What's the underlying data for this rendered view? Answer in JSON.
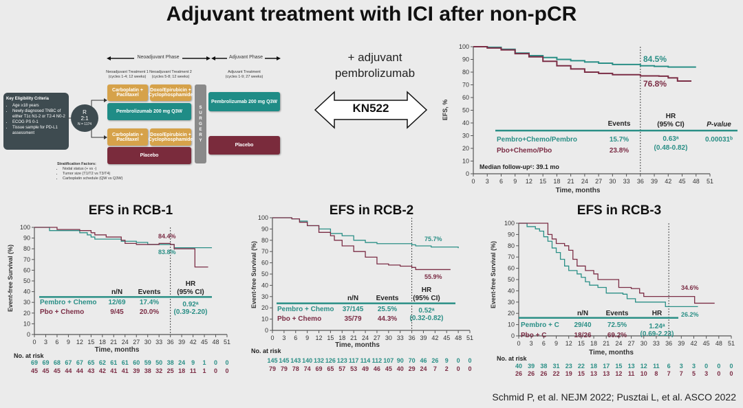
{
  "slide_title": "Adjuvant treatment with ICI after non-pCR",
  "design": {
    "neoadjuvant_phase": "Neoadjuvant Phase",
    "adjuvant_phase": "Adjuvant Phase",
    "neo1_title": "Neoadjuvant Treatment 1",
    "neo1_sub": "(cycles 1-4; 12 weeks)",
    "neo2_title": "Neoadjuvant Treatment 2",
    "neo2_sub": "(cycles 5-8; 12 weeks)",
    "adj_title": "Adjuvant Treatment",
    "adj_sub": "(cycles 1-9; 27 weeks)",
    "eligibility_title": "Key Eligibility Criteria",
    "eligibility": [
      "Age ≥18 years",
      "Newly diagnosed TNBC of either T1c N1-2 or T2-4 N0-2",
      "ECOG PS 0-1",
      "Tissue sample for PD-L1 assessment"
    ],
    "randomization": {
      "r": "R",
      "ratio": "2:1",
      "n": "N = 1174"
    },
    "carbo": "Carboplatin + Paclitaxel",
    "doxo": "Doxo/Epirubicin + Cyclophosphamide",
    "pembro_neo": "Pembrolizumab 200 mg Q3W",
    "placebo_neo": "Placebo",
    "surgery": [
      "S",
      "U",
      "R",
      "G",
      "E",
      "R",
      "Y"
    ],
    "pembro_adj": "Pembrolizumab 200 mg Q3W",
    "placebo_adj": "Placebo",
    "strat_title": "Stratification Factors:",
    "strat": [
      "Nodal status (+ vs -)",
      "Tumor size (T1/T2 vs T3/T4)",
      "Carboplatin schedule (QW vs Q3W)"
    ]
  },
  "kn522": {
    "line1": "+ adjuvant",
    "line2": "pembrolizumab",
    "label": "KN522"
  },
  "citation": "Schmid P, et al. NEJM 2022; Pusztai L, et al. ASCO 2022",
  "colors": {
    "teal": "#2a8f86",
    "maroon": "#7b2d45"
  },
  "chart_data": [
    {
      "type": "line",
      "title": "",
      "xlabel": "Time, months",
      "ylabel": "EFS, %",
      "xlim": [
        0,
        51
      ],
      "ylim": [
        0,
        100
      ],
      "xticks": [
        0,
        3,
        6,
        9,
        12,
        15,
        18,
        21,
        24,
        27,
        30,
        33,
        36,
        39,
        42,
        45,
        48,
        51
      ],
      "yticks": [
        0,
        10,
        20,
        30,
        40,
        50,
        60,
        70,
        80,
        90,
        100
      ],
      "landmark_x": 36,
      "series": [
        {
          "name": "Pembro+Chemo/Pembro",
          "color": "#2a8f86",
          "points": [
            [
              0,
              100
            ],
            [
              3,
              99.5
            ],
            [
              6,
              98
            ],
            [
              9,
              95
            ],
            [
              12,
              93
            ],
            [
              15,
              91.5
            ],
            [
              18,
              90
            ],
            [
              21,
              89
            ],
            [
              24,
              88
            ],
            [
              27,
              87
            ],
            [
              30,
              86
            ],
            [
              36,
              85
            ],
            [
              39,
              84.5
            ],
            [
              42,
              84
            ],
            [
              48,
              84
            ]
          ]
        },
        {
          "name": "Pbo+Chemo/Pbo",
          "color": "#7b2d45",
          "points": [
            [
              0,
              100
            ],
            [
              3,
              99
            ],
            [
              6,
              97.5
            ],
            [
              9,
              94.5
            ],
            [
              12,
              92
            ],
            [
              15,
              88.5
            ],
            [
              18,
              85
            ],
            [
              21,
              82.5
            ],
            [
              24,
              80
            ],
            [
              27,
              79
            ],
            [
              30,
              78
            ],
            [
              36,
              77
            ],
            [
              40,
              76.8
            ],
            [
              42,
              75.5
            ],
            [
              44,
              73
            ],
            [
              47,
              73
            ]
          ]
        }
      ],
      "annotations": [
        {
          "text": "84.5%",
          "color": "#2a8f86"
        },
        {
          "text": "76.8%",
          "color": "#7b2d45"
        }
      ],
      "table": {
        "headers": [
          "Events",
          "HR",
          "(95% CI)",
          "P-value"
        ],
        "rows": [
          {
            "arm": "Pembro+Chemo/Pembro",
            "events": "15.7%",
            "hr": "0.63ᵃ",
            "ci": "(0.48-0.82)",
            "p": "0.00031ᵇ"
          },
          {
            "arm": "Pbo+Chemo/Pbo",
            "events": "23.8%"
          }
        ]
      },
      "note": "Median follow-upᶜ: 39.1 mo"
    },
    {
      "type": "line",
      "title": "EFS in RCB-1",
      "xlabel": "Time, months",
      "ylabel": "Event-free Survival (%)",
      "xlim": [
        0,
        51
      ],
      "ylim": [
        0,
        100
      ],
      "xticks": [
        0,
        3,
        6,
        9,
        12,
        15,
        18,
        21,
        24,
        27,
        30,
        33,
        36,
        39,
        42,
        45,
        48,
        51
      ],
      "yticks": [
        0,
        10,
        20,
        30,
        40,
        50,
        60,
        70,
        80,
        90,
        100
      ],
      "landmark_x": 36,
      "series": [
        {
          "name": "Pembro + Chemo",
          "color": "#2a8f86",
          "points": [
            [
              0,
              100
            ],
            [
              4,
              97
            ],
            [
              11,
              97
            ],
            [
              12,
              95
            ],
            [
              14,
              93
            ],
            [
              15,
              91
            ],
            [
              16,
              89
            ],
            [
              22,
              89
            ],
            [
              23,
              87
            ],
            [
              27,
              86
            ],
            [
              30,
              84
            ],
            [
              36,
              84
            ],
            [
              37,
              81
            ],
            [
              47,
              81
            ]
          ]
        },
        {
          "name": "Pbo + Chemo",
          "color": "#7b2d45",
          "points": [
            [
              0,
              100
            ],
            [
              6,
              98
            ],
            [
              12,
              97
            ],
            [
              15,
              95
            ],
            [
              16,
              93
            ],
            [
              19,
              91
            ],
            [
              22,
              91
            ],
            [
              23,
              88
            ],
            [
              24,
              85
            ],
            [
              27,
              84
            ],
            [
              33,
              85
            ],
            [
              36,
              84
            ],
            [
              37,
              80
            ],
            [
              42,
              80
            ],
            [
              42.5,
              63
            ],
            [
              46,
              63
            ]
          ]
        }
      ],
      "annotations": [
        {
          "text": "84.4%",
          "color": "#7b2d45"
        },
        {
          "text": "83.8%",
          "color": "#2a8f86"
        }
      ],
      "table": {
        "headers": [
          "n/N",
          "Events",
          "HR",
          "(95% CI)"
        ],
        "rows": [
          {
            "arm": "Pembro + Chemo",
            "n": "12/69",
            "events": "17.4%",
            "hr": "0.92ᵃ",
            "ci": "(0.39-2.20)"
          },
          {
            "arm": "Pbo + Chemo",
            "n": "9/45",
            "events": "20.0%"
          }
        ]
      },
      "at_risk": {
        "label": "No. at risk",
        "rows": [
          [
            69,
            69,
            68,
            67,
            67,
            65,
            62,
            61,
            61,
            60,
            59,
            50,
            38,
            24,
            9,
            1,
            0,
            0
          ],
          [
            45,
            45,
            45,
            44,
            44,
            43,
            42,
            41,
            41,
            39,
            38,
            32,
            25,
            18,
            11,
            1,
            0,
            0
          ]
        ]
      }
    },
    {
      "type": "line",
      "title": "EFS in RCB-2",
      "xlabel": "Time, months",
      "ylabel": "Event-free Survival (%)",
      "xlim": [
        0,
        51
      ],
      "ylim": [
        0,
        100
      ],
      "xticks": [
        0,
        3,
        6,
        9,
        12,
        15,
        18,
        21,
        24,
        27,
        30,
        33,
        36,
        39,
        42,
        45,
        48,
        51
      ],
      "yticks": [
        0,
        10,
        20,
        30,
        40,
        50,
        60,
        70,
        80,
        90,
        100
      ],
      "landmark_x": 36,
      "series": [
        {
          "name": "Pembro + Chemo",
          "color": "#2a8f86",
          "points": [
            [
              0,
              100
            ],
            [
              5,
              99
            ],
            [
              7,
              97
            ],
            [
              9,
              93
            ],
            [
              12,
              90
            ],
            [
              15,
              86
            ],
            [
              18,
              84
            ],
            [
              21,
              80
            ],
            [
              24,
              78
            ],
            [
              27,
              77
            ],
            [
              33,
              77
            ],
            [
              36,
              76
            ],
            [
              37,
              75
            ],
            [
              41,
              74
            ],
            [
              48,
              73
            ]
          ]
        },
        {
          "name": "Pbo + Chemo",
          "color": "#7b2d45",
          "points": [
            [
              0,
              100
            ],
            [
              5,
              99
            ],
            [
              7,
              96
            ],
            [
              9,
              93
            ],
            [
              12,
              87
            ],
            [
              15,
              84
            ],
            [
              16,
              80
            ],
            [
              18,
              75
            ],
            [
              21,
              70
            ],
            [
              24,
              65
            ],
            [
              27,
              59
            ],
            [
              30,
              58
            ],
            [
              33,
              57
            ],
            [
              36,
              55.9
            ],
            [
              37,
              54
            ],
            [
              46,
              54
            ]
          ]
        }
      ],
      "annotations": [
        {
          "text": "75.7%",
          "color": "#2a8f86"
        },
        {
          "text": "55.9%",
          "color": "#7b2d45"
        }
      ],
      "table": {
        "headers": [
          "n/N",
          "Events",
          "HR",
          "(95% CI)"
        ],
        "rows": [
          {
            "arm": "Pembro + Chemo",
            "n": "37/145",
            "events": "25.5%",
            "hr": "0.52ᵃ",
            "ci": "(0.32-0.82)"
          },
          {
            "arm": "Pbo + Chemo",
            "n": "35/79",
            "events": "44.3%"
          }
        ]
      },
      "at_risk": {
        "label": "No. at risk",
        "rows": [
          [
            145,
            145,
            143,
            140,
            132,
            126,
            123,
            117,
            114,
            112,
            107,
            90,
            70,
            46,
            26,
            9,
            0,
            0
          ],
          [
            79,
            79,
            78,
            74,
            69,
            65,
            57,
            53,
            49,
            46,
            45,
            40,
            29,
            24,
            7,
            2,
            0,
            0
          ]
        ]
      }
    },
    {
      "type": "line",
      "title": "EFS in RCB-3",
      "xlabel": "Time, months",
      "ylabel": "Event-free Survival (%)",
      "xlim": [
        0,
        51
      ],
      "ylim": [
        0,
        100
      ],
      "xticks": [
        0,
        3,
        6,
        9,
        12,
        15,
        18,
        21,
        24,
        27,
        30,
        33,
        36,
        39,
        42,
        45,
        48,
        51
      ],
      "yticks": [
        0,
        10,
        20,
        30,
        40,
        50,
        60,
        70,
        80,
        90,
        100
      ],
      "landmark_x": 36,
      "series": [
        {
          "name": "Pembro + C",
          "color": "#2a8f86",
          "points": [
            [
              0,
              100
            ],
            [
              2,
              97
            ],
            [
              4,
              95
            ],
            [
              5,
              93
            ],
            [
              6,
              88
            ],
            [
              7,
              84
            ],
            [
              8,
              78
            ],
            [
              9,
              74
            ],
            [
              10,
              68
            ],
            [
              11,
              62
            ],
            [
              12,
              58
            ],
            [
              14,
              55
            ],
            [
              15,
              52
            ],
            [
              16,
              48
            ],
            [
              17,
              45
            ],
            [
              19,
              43
            ],
            [
              21,
              38
            ],
            [
              25,
              37
            ],
            [
              26,
              33
            ],
            [
              28,
              30
            ],
            [
              35,
              30
            ],
            [
              35.2,
              26
            ],
            [
              43,
              26
            ]
          ]
        },
        {
          "name": "Pbo + C",
          "color": "#7b2d45",
          "points": [
            [
              0,
              100
            ],
            [
              6,
              100
            ],
            [
              7,
              90
            ],
            [
              8,
              86
            ],
            [
              9,
              82
            ],
            [
              11,
              80
            ],
            [
              12,
              76
            ],
            [
              13,
              68
            ],
            [
              14,
              62
            ],
            [
              16,
              58
            ],
            [
              18,
              55
            ],
            [
              19,
              50
            ],
            [
              23,
              50
            ],
            [
              24,
              43
            ],
            [
              27,
              42
            ],
            [
              29,
              38
            ],
            [
              30,
              35
            ],
            [
              42,
              35
            ],
            [
              42.2,
              29
            ],
            [
              47,
              29
            ]
          ]
        }
      ],
      "annotations": [
        {
          "text": "34.6%",
          "color": "#7b2d45"
        },
        {
          "text": "26.2%",
          "color": "#2a8f86"
        }
      ],
      "table": {
        "headers": [
          "n/N",
          "Events",
          "HR"
        ],
        "rows": [
          {
            "arm": "Pembro + C",
            "n": "29/40",
            "events": "72.5%",
            "hr": "1.24ᵃ",
            "ci": "(0.69-2.23)"
          },
          {
            "arm": "Pbo + C",
            "n": "18/26",
            "events": "69.2%"
          }
        ]
      },
      "at_risk": {
        "label": "No. at risk",
        "rows": [
          [
            40,
            39,
            38,
            31,
            23,
            22,
            18,
            17,
            15,
            13,
            12,
            11,
            6,
            3,
            3,
            0,
            0,
            0
          ],
          [
            26,
            26,
            26,
            22,
            19,
            15,
            13,
            13,
            12,
            11,
            10,
            8,
            7,
            7,
            5,
            3,
            0,
            0
          ]
        ]
      }
    }
  ]
}
